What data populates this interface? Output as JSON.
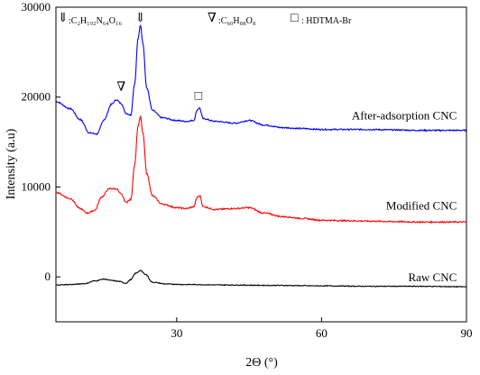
{
  "chart_data": {
    "type": "line",
    "xlabel": "2Θ (°)",
    "ylabel": "Intensity (a.u)",
    "xlim": [
      5,
      90
    ],
    "ylim": [
      -5000,
      30000
    ],
    "x_ticks": [
      30,
      60,
      90
    ],
    "y_ticks": [
      0,
      10000,
      20000,
      30000
    ],
    "x_tick_labels": [
      "30",
      "60",
      "90"
    ],
    "y_tick_labels": [
      "0",
      "10000",
      "20000",
      "30000"
    ],
    "grid": false,
    "legend": [
      {
        "symbol": "⇓",
        "text": ":C₂H₁₉₂N₆₄O₁₆"
      },
      {
        "symbol": "∇",
        "text": ":C₆₀H₈₈O₈"
      },
      {
        "symbol": "□",
        "text": ": HDTMA-Br"
      }
    ],
    "markers": [
      {
        "symbol": "⇓",
        "x": 22.5,
        "y": 28400
      },
      {
        "symbol": "∇",
        "x": 18.5,
        "y": 20700
      },
      {
        "symbol": "□",
        "x": 34.5,
        "y": 19700
      }
    ],
    "series": [
      {
        "name": "After-adsorption CNC",
        "color": "#0000ff",
        "points": [
          [
            5,
            19500
          ],
          [
            8,
            18700
          ],
          [
            10,
            17500
          ],
          [
            12,
            16000
          ],
          [
            13.5,
            15900
          ],
          [
            15,
            17500
          ],
          [
            16.5,
            19200
          ],
          [
            17.5,
            19700
          ],
          [
            18.5,
            19300
          ],
          [
            19.5,
            18200
          ],
          [
            20.5,
            18000
          ],
          [
            21.3,
            21500
          ],
          [
            22,
            26500
          ],
          [
            22.5,
            28000
          ],
          [
            23,
            26000
          ],
          [
            23.8,
            21000
          ],
          [
            25,
            18500
          ],
          [
            27,
            17700
          ],
          [
            30,
            17400
          ],
          [
            32,
            17300
          ],
          [
            33.5,
            17400
          ],
          [
            34.3,
            18600
          ],
          [
            34.7,
            18800
          ],
          [
            35.5,
            17600
          ],
          [
            38,
            17300
          ],
          [
            42,
            17100
          ],
          [
            45,
            17400
          ],
          [
            48,
            16900
          ],
          [
            52,
            16600
          ],
          [
            56,
            16500
          ],
          [
            60,
            16400
          ],
          [
            65,
            16400
          ],
          [
            70,
            16400
          ],
          [
            75,
            16350
          ],
          [
            80,
            16300
          ],
          [
            85,
            16300
          ],
          [
            90,
            16300
          ]
        ]
      },
      {
        "name": "Modified CNC",
        "color": "#ff0000",
        "points": [
          [
            5,
            9400
          ],
          [
            8,
            8700
          ],
          [
            10,
            7600
          ],
          [
            11.5,
            7100
          ],
          [
            13,
            7400
          ],
          [
            14.5,
            8900
          ],
          [
            16,
            9800
          ],
          [
            17.5,
            9800
          ],
          [
            18.5,
            9200
          ],
          [
            19.5,
            8300
          ],
          [
            20.5,
            8600
          ],
          [
            21.3,
            12500
          ],
          [
            22,
            16800
          ],
          [
            22.5,
            17800
          ],
          [
            23,
            16000
          ],
          [
            23.8,
            11500
          ],
          [
            25,
            9000
          ],
          [
            27,
            8100
          ],
          [
            30,
            7700
          ],
          [
            32,
            7600
          ],
          [
            33.5,
            7800
          ],
          [
            34.3,
            8900
          ],
          [
            34.8,
            9000
          ],
          [
            35.5,
            7800
          ],
          [
            38,
            7500
          ],
          [
            42,
            7600
          ],
          [
            45,
            7700
          ],
          [
            48,
            7100
          ],
          [
            52,
            6700
          ],
          [
            56,
            6500
          ],
          [
            60,
            6300
          ],
          [
            65,
            6250
          ],
          [
            70,
            6200
          ],
          [
            75,
            6150
          ],
          [
            80,
            6100
          ],
          [
            85,
            6100
          ],
          [
            90,
            6100
          ]
        ]
      },
      {
        "name": "Raw CNC",
        "color": "#000000",
        "points": [
          [
            5,
            -900
          ],
          [
            8,
            -850
          ],
          [
            11,
            -750
          ],
          [
            13,
            -450
          ],
          [
            15,
            -250
          ],
          [
            16.5,
            -400
          ],
          [
            18,
            -500
          ],
          [
            19.5,
            -700
          ],
          [
            20.5,
            -300
          ],
          [
            21.5,
            400
          ],
          [
            22.5,
            700
          ],
          [
            23.5,
            300
          ],
          [
            25,
            -600
          ],
          [
            28,
            -800
          ],
          [
            32,
            -850
          ],
          [
            40,
            -900
          ],
          [
            50,
            -950
          ],
          [
            60,
            -1000
          ],
          [
            70,
            -1050
          ],
          [
            80,
            -1050
          ],
          [
            90,
            -1100
          ]
        ]
      }
    ]
  }
}
